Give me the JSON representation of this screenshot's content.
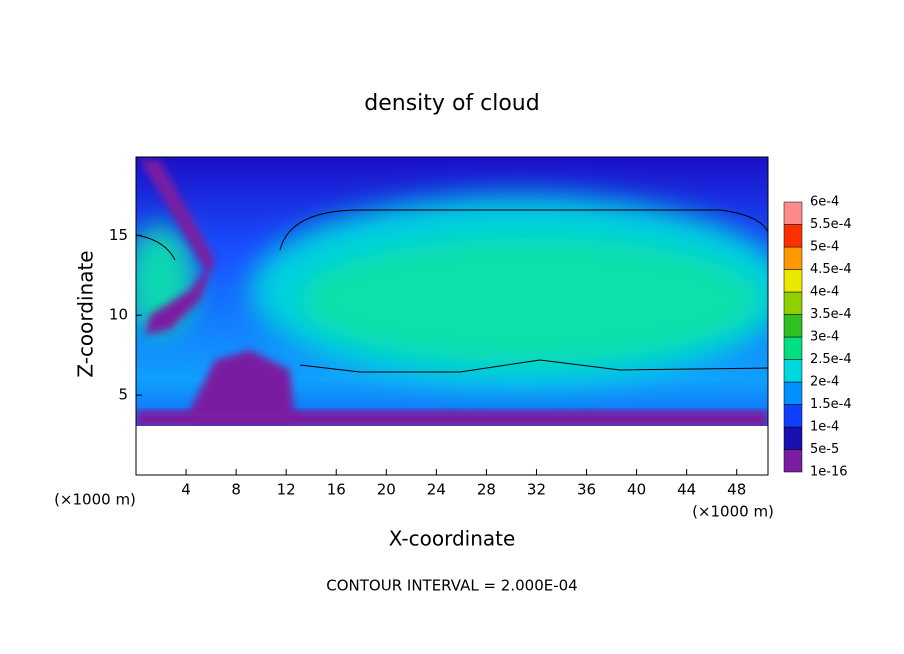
{
  "chart_data": {
    "type": "contour",
    "title": "density of cloud",
    "xlabel": "X-coordinate",
    "ylabel": "Z-coordinate",
    "xunit": "(×1000 m)",
    "yunit": "(×1000 m)",
    "footer": "CONTOUR INTERVAL = 2.000E-04",
    "xlim": [
      0,
      50.5
    ],
    "ylim": [
      0,
      19.9
    ],
    "xticks": [
      4,
      8,
      12,
      16,
      20,
      24,
      28,
      32,
      36,
      40,
      44,
      48
    ],
    "yticks": [
      5,
      10,
      15
    ],
    "levels": [
      {
        "value": 1e-16,
        "label": "1e-16"
      },
      {
        "value": 5e-05,
        "label": "5e-5"
      },
      {
        "value": 0.0001,
        "label": "1e-4"
      },
      {
        "value": 0.00015,
        "label": "1.5e-4"
      },
      {
        "value": 0.0002,
        "label": "2e-4"
      },
      {
        "value": 0.00025,
        "label": "2.5e-4"
      },
      {
        "value": 0.0003,
        "label": "3e-4"
      },
      {
        "value": 0.00035,
        "label": "3.5e-4"
      },
      {
        "value": 0.0004,
        "label": "4e-4"
      },
      {
        "value": 0.00045,
        "label": "4.5e-4"
      },
      {
        "value": 0.0005,
        "label": "5e-4"
      },
      {
        "value": 0.00055,
        "label": "5.5e-4"
      },
      {
        "value": 0.0006,
        "label": "6e-4"
      }
    ],
    "colors": [
      "#7a1fa2",
      "#1a10b0",
      "#1040ff",
      "#0090ff",
      "#00d8e0",
      "#00e080",
      "#30c020",
      "#90d000",
      "#e8e800",
      "#ff9900",
      "#ff3000",
      "#ff8a8a"
    ]
  }
}
